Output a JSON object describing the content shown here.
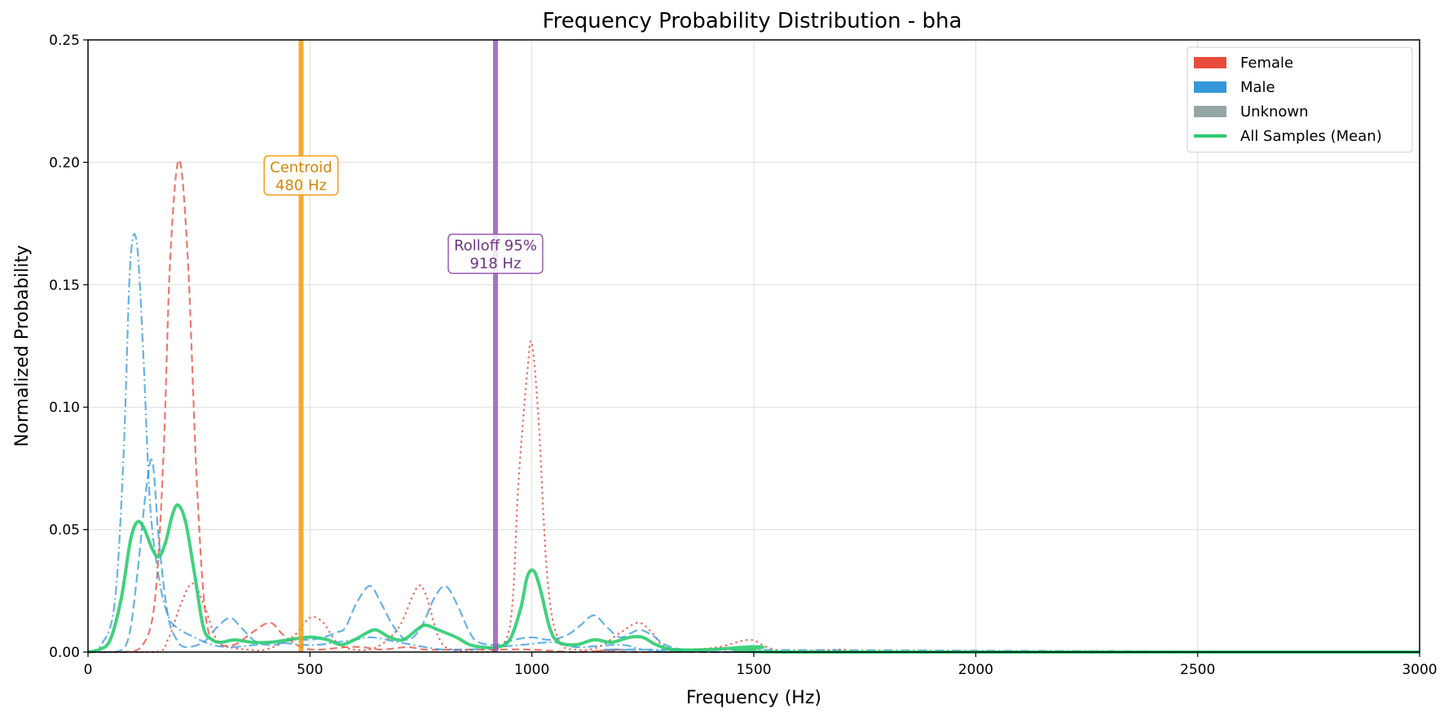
{
  "chart_data": {
    "type": "line",
    "title": "Frequency Probability Distribution - bha",
    "xlabel": "Frequency (Hz)",
    "ylabel": "Normalized Probability",
    "xlim": [
      0,
      3000
    ],
    "ylim": [
      0,
      0.25
    ],
    "xticks": [
      0,
      500,
      1000,
      1500,
      2000,
      2500,
      3000
    ],
    "xtick_labels": [
      "0",
      "500",
      "1000",
      "1500",
      "2000",
      "2500",
      "3000"
    ],
    "yticks": [
      0.0,
      0.05,
      0.1,
      0.15,
      0.2,
      0.25
    ],
    "ytick_labels": [
      "0.00",
      "0.05",
      "0.10",
      "0.15",
      "0.20",
      "0.25"
    ],
    "grid": true,
    "legend_position": "top-right",
    "legend": [
      {
        "label": "Female",
        "kind": "patch",
        "color": "#e74c3c"
      },
      {
        "label": "Male",
        "kind": "patch",
        "color": "#3498db"
      },
      {
        "label": "Unknown",
        "kind": "patch",
        "color": "#95a5a6"
      },
      {
        "label": "All Samples (Mean)",
        "kind": "line",
        "color": "#2ecc71"
      }
    ],
    "annotations": [
      {
        "label": "Centroid",
        "value_text": "480 Hz",
        "x": 480,
        "color": "#f39c12",
        "text_color": "#d4860b",
        "label_y": 0.195
      },
      {
        "label": "Rolloff 95%",
        "value_text": "918 Hz",
        "x": 918,
        "color": "#9b59b6",
        "text_color": "#6c3483",
        "label_y": 0.163
      }
    ],
    "series": [
      {
        "group": "Female",
        "color": "#e74c3c",
        "dash": "9,5",
        "width": 2.2,
        "opacity": 0.75,
        "points": [
          [
            0,
            0
          ],
          [
            80,
            0
          ],
          [
            120,
            0.002
          ],
          [
            150,
            0.02
          ],
          [
            170,
            0.08
          ],
          [
            185,
            0.16
          ],
          [
            205,
            0.201
          ],
          [
            225,
            0.16
          ],
          [
            245,
            0.07
          ],
          [
            265,
            0.015
          ],
          [
            290,
            0.004
          ],
          [
            330,
            0.003
          ],
          [
            370,
            0.008
          ],
          [
            410,
            0.012
          ],
          [
            440,
            0.007
          ],
          [
            480,
            0.002
          ],
          [
            520,
            0.001
          ],
          [
            580,
            0.002
          ],
          [
            620,
            0.002
          ],
          [
            660,
            0.001
          ],
          [
            720,
            0.002
          ],
          [
            760,
            0.001
          ],
          [
            820,
            0.001
          ],
          [
            900,
            0.001
          ],
          [
            1000,
            0.001
          ],
          [
            1100,
            0
          ],
          [
            1200,
            0.001
          ],
          [
            1300,
            0
          ],
          [
            3000,
            0
          ]
        ]
      },
      {
        "group": "Female",
        "color": "#e74c3c",
        "dash": "2.5,4",
        "width": 2.2,
        "opacity": 0.8,
        "points": [
          [
            0,
            0
          ],
          [
            150,
            0
          ],
          [
            180,
            0.005
          ],
          [
            210,
            0.02
          ],
          [
            235,
            0.028
          ],
          [
            260,
            0.02
          ],
          [
            290,
            0.005
          ],
          [
            320,
            0.002
          ],
          [
            360,
            0.001
          ],
          [
            400,
            0.001
          ],
          [
            460,
            0.006
          ],
          [
            500,
            0.014
          ],
          [
            530,
            0.012
          ],
          [
            560,
            0.004
          ],
          [
            600,
            0.001
          ],
          [
            650,
            0.002
          ],
          [
            700,
            0.01
          ],
          [
            740,
            0.026
          ],
          [
            760,
            0.024
          ],
          [
            790,
            0.006
          ],
          [
            820,
            0.001
          ],
          [
            900,
            0
          ],
          [
            950,
            0.01
          ],
          [
            970,
            0.07
          ],
          [
            990,
            0.115
          ],
          [
            1000,
            0.126
          ],
          [
            1015,
            0.095
          ],
          [
            1035,
            0.03
          ],
          [
            1060,
            0.005
          ],
          [
            1100,
            0.001
          ],
          [
            1150,
            0.002
          ],
          [
            1200,
            0.008
          ],
          [
            1240,
            0.012
          ],
          [
            1270,
            0.008
          ],
          [
            1300,
            0.002
          ],
          [
            1350,
            0.001
          ],
          [
            1420,
            0.002
          ],
          [
            1490,
            0.005
          ],
          [
            1530,
            0.002
          ],
          [
            1580,
            0
          ],
          [
            1700,
            0.001
          ],
          [
            1800,
            0
          ],
          [
            3000,
            0
          ]
        ]
      },
      {
        "group": "Male",
        "color": "#3498db",
        "dash": "11,4,2,4",
        "width": 2.2,
        "opacity": 0.75,
        "points": [
          [
            0,
            0
          ],
          [
            30,
            0.003
          ],
          [
            60,
            0.02
          ],
          [
            80,
            0.08
          ],
          [
            95,
            0.158
          ],
          [
            110,
            0.167
          ],
          [
            125,
            0.12
          ],
          [
            140,
            0.06
          ],
          [
            160,
            0.03
          ],
          [
            180,
            0.015
          ],
          [
            200,
            0.01
          ],
          [
            240,
            0.006
          ],
          [
            280,
            0.003
          ],
          [
            320,
            0.002
          ],
          [
            380,
            0.003
          ],
          [
            420,
            0.004
          ],
          [
            480,
            0.003
          ],
          [
            520,
            0.003
          ],
          [
            560,
            0.004
          ],
          [
            600,
            0.005
          ],
          [
            640,
            0.006
          ],
          [
            700,
            0.004
          ],
          [
            760,
            0.002
          ],
          [
            800,
            0.001
          ],
          [
            860,
            0.001
          ],
          [
            920,
            0.002
          ],
          [
            980,
            0.003
          ],
          [
            1050,
            0.004
          ],
          [
            1100,
            0.002
          ],
          [
            1200,
            0.003
          ],
          [
            1250,
            0.001
          ],
          [
            1300,
            0.001
          ],
          [
            3000,
            0
          ]
        ]
      },
      {
        "group": "Male",
        "color": "#3498db",
        "dash": "11,5",
        "width": 2.2,
        "opacity": 0.75,
        "points": [
          [
            0,
            0
          ],
          [
            60,
            0
          ],
          [
            90,
            0.005
          ],
          [
            110,
            0.03
          ],
          [
            130,
            0.065
          ],
          [
            145,
            0.078
          ],
          [
            160,
            0.045
          ],
          [
            180,
            0.015
          ],
          [
            200,
            0.005
          ],
          [
            220,
            0.002
          ],
          [
            260,
            0.004
          ],
          [
            290,
            0.01
          ],
          [
            320,
            0.014
          ],
          [
            345,
            0.01
          ],
          [
            380,
            0.004
          ],
          [
            420,
            0.003
          ],
          [
            460,
            0.005
          ],
          [
            500,
            0.005
          ],
          [
            530,
            0.006
          ],
          [
            560,
            0.008
          ],
          [
            580,
            0.01
          ],
          [
            605,
            0.02
          ],
          [
            635,
            0.027
          ],
          [
            660,
            0.02
          ],
          [
            690,
            0.01
          ],
          [
            720,
            0.005
          ],
          [
            750,
            0.01
          ],
          [
            780,
            0.022
          ],
          [
            805,
            0.027
          ],
          [
            830,
            0.02
          ],
          [
            860,
            0.008
          ],
          [
            880,
            0.004
          ],
          [
            920,
            0.003
          ],
          [
            960,
            0.005
          ],
          [
            1000,
            0.006
          ],
          [
            1040,
            0.005
          ],
          [
            1080,
            0.007
          ],
          [
            1110,
            0.011
          ],
          [
            1140,
            0.015
          ],
          [
            1170,
            0.01
          ],
          [
            1200,
            0.006
          ],
          [
            1240,
            0.009
          ],
          [
            1270,
            0.007
          ],
          [
            1300,
            0.003
          ],
          [
            1340,
            0.001
          ],
          [
            1400,
            0
          ],
          [
            3000,
            0
          ]
        ]
      },
      {
        "group": "All Samples (Mean)",
        "color": "#2ecc71",
        "dash": "",
        "width": 4,
        "opacity": 0.9,
        "points": [
          [
            0,
            0
          ],
          [
            25,
            0.001
          ],
          [
            50,
            0.005
          ],
          [
            75,
            0.022
          ],
          [
            95,
            0.045
          ],
          [
            110,
            0.053
          ],
          [
            125,
            0.051
          ],
          [
            145,
            0.042
          ],
          [
            160,
            0.039
          ],
          [
            175,
            0.045
          ],
          [
            190,
            0.056
          ],
          [
            203,
            0.06
          ],
          [
            220,
            0.053
          ],
          [
            240,
            0.032
          ],
          [
            260,
            0.01
          ],
          [
            280,
            0.005
          ],
          [
            300,
            0.004
          ],
          [
            330,
            0.005
          ],
          [
            370,
            0.004
          ],
          [
            410,
            0.004
          ],
          [
            450,
            0.005
          ],
          [
            490,
            0.006
          ],
          [
            510,
            0.006
          ],
          [
            540,
            0.005
          ],
          [
            570,
            0.003
          ],
          [
            600,
            0.005
          ],
          [
            630,
            0.008
          ],
          [
            650,
            0.009
          ],
          [
            680,
            0.006
          ],
          [
            710,
            0.005
          ],
          [
            740,
            0.009
          ],
          [
            760,
            0.011
          ],
          [
            790,
            0.009
          ],
          [
            830,
            0.006
          ],
          [
            860,
            0.003
          ],
          [
            890,
            0.002
          ],
          [
            920,
            0.002
          ],
          [
            950,
            0.005
          ],
          [
            975,
            0.018
          ],
          [
            990,
            0.031
          ],
          [
            1005,
            0.033
          ],
          [
            1020,
            0.025
          ],
          [
            1040,
            0.01
          ],
          [
            1060,
            0.004
          ],
          [
            1100,
            0.003
          ],
          [
            1140,
            0.005
          ],
          [
            1180,
            0.004
          ],
          [
            1220,
            0.006
          ],
          [
            1250,
            0.006
          ],
          [
            1280,
            0.003
          ],
          [
            1320,
            0.001
          ],
          [
            1400,
            0.001
          ],
          [
            1480,
            0.002
          ],
          [
            1520,
            0.002
          ],
          [
            1580,
            0
          ],
          [
            3000,
            0
          ]
        ]
      }
    ]
  }
}
